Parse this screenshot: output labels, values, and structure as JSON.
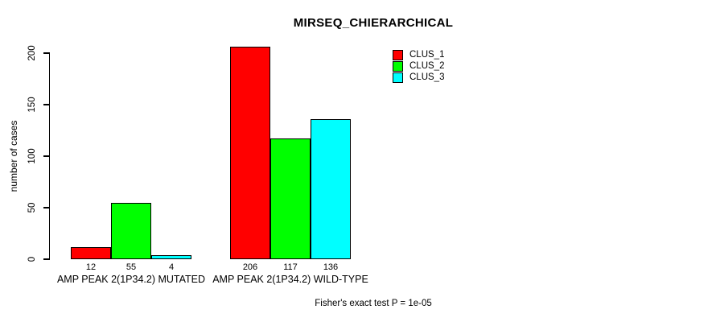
{
  "title": "MIRSEQ_CHIERARCHICAL",
  "y_axis": {
    "label": "number of cases",
    "ticks": [
      0,
      50,
      100,
      150,
      200
    ]
  },
  "footer": "Fisher's exact test P = 1e-05",
  "legend": {
    "items": [
      {
        "label": "CLUS_1",
        "color": "#FF0000"
      },
      {
        "label": "CLUS_2",
        "color": "#00FF00"
      },
      {
        "label": "CLUS_3",
        "color": "#00FFFF"
      }
    ]
  },
  "chart_data": {
    "type": "bar",
    "title": "MIRSEQ_CHIERARCHICAL",
    "xlabel": "",
    "ylabel": "number of cases",
    "categories": [
      "AMP PEAK 2(1P34.2) MUTATED",
      "AMP PEAK 2(1P34.2) WILD-TYPE"
    ],
    "series": [
      {
        "name": "CLUS_1",
        "color": "#FF0000",
        "values": [
          12,
          206
        ]
      },
      {
        "name": "CLUS_2",
        "color": "#00FF00",
        "values": [
          55,
          117
        ]
      },
      {
        "name": "CLUS_3",
        "color": "#00FFFF",
        "values": [
          4,
          136
        ]
      }
    ],
    "value_labels": [
      [
        12,
        55,
        4
      ],
      [
        206,
        117,
        136
      ]
    ],
    "ylim": [
      0,
      206
    ],
    "yticks": [
      0,
      50,
      100,
      150,
      200
    ],
    "grid": false,
    "legend_position": "top-right",
    "bar_border_color": "#000000",
    "annotation": "Fisher's exact test P = 1e-05"
  }
}
